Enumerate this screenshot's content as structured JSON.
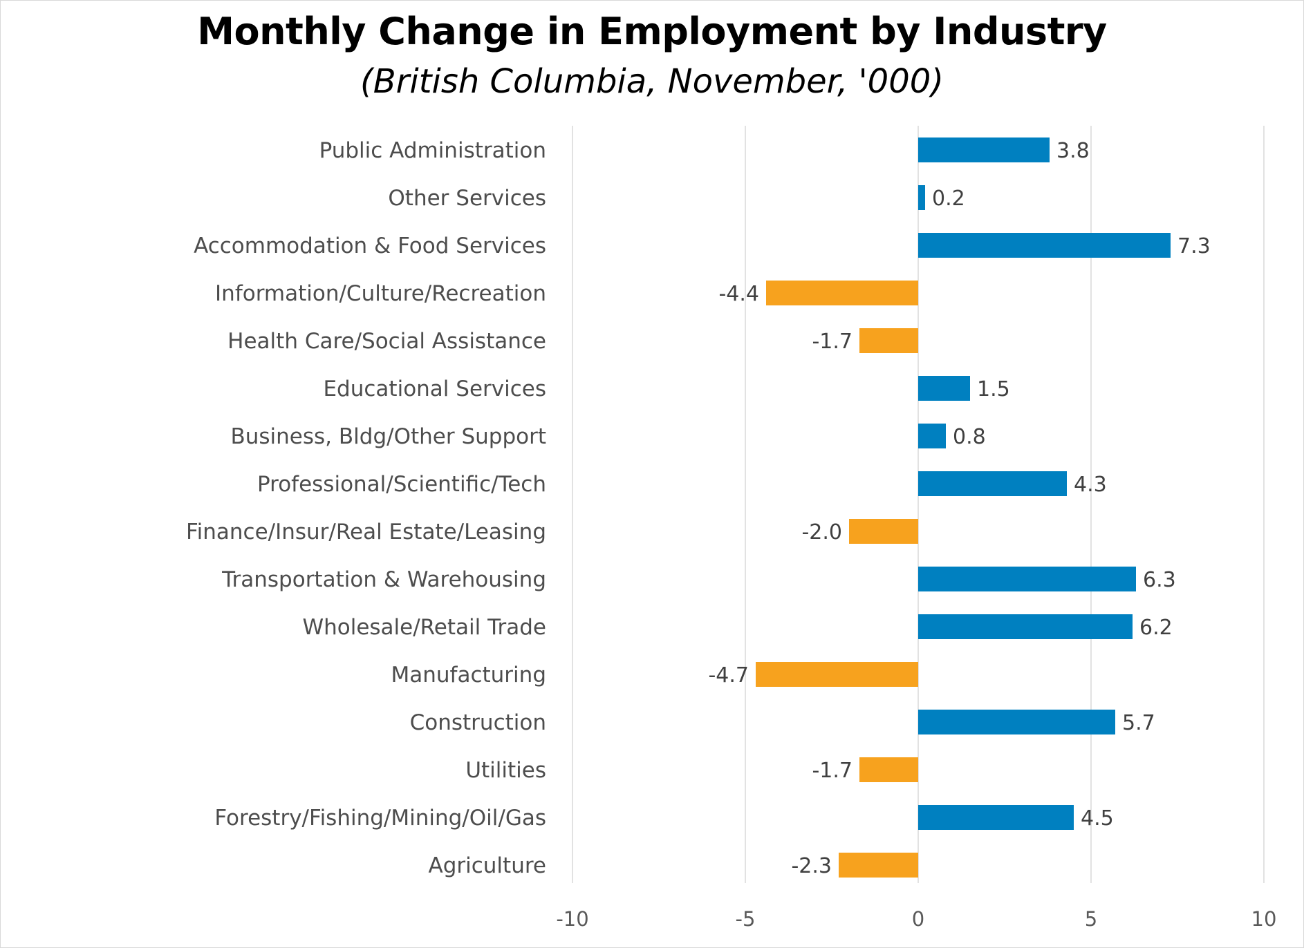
{
  "chart_data": {
    "type": "bar",
    "orientation": "horizontal",
    "title": "Monthly Change in Employment by Industry",
    "subtitle": "(British Columbia, November, '000)",
    "categories": [
      "Public Administration",
      "Other Services",
      "Accommodation & Food Services",
      "Information/Culture/Recreation",
      "Health Care/Social Assistance",
      "Educational Services",
      "Business, Bldg/Other Support",
      "Professional/Scientific/Tech",
      "Finance/Insur/Real Estate/Leasing",
      "Transportation & Warehousing",
      "Wholesale/Retail Trade",
      "Manufacturing",
      "Construction",
      "Utilities",
      "Forestry/Fishing/Mining/Oil/Gas",
      "Agriculture"
    ],
    "values": [
      3.8,
      0.2,
      7.3,
      -4.4,
      -1.7,
      1.5,
      0.8,
      4.3,
      -2.0,
      6.3,
      6.2,
      -4.7,
      5.7,
      -1.7,
      4.5,
      -2.3
    ],
    "value_labels": [
      "3.8",
      "0.2",
      "7.3",
      "-4.4",
      "-1.7",
      "1.5",
      "0.8",
      "4.3",
      "-2.0",
      "6.3",
      "6.2",
      "-4.7",
      "5.7",
      "-1.7",
      "4.5",
      "-2.3"
    ],
    "xlim": [
      -10,
      10
    ],
    "xticks": [
      -10,
      -5,
      0,
      5,
      10
    ],
    "xtick_labels": [
      "-10",
      "-5",
      "0",
      "5",
      "10"
    ],
    "xlabel": "",
    "ylabel": "",
    "grid": true,
    "legend": "none",
    "colors": {
      "positive": "#0080c0",
      "negative": "#f7a21e"
    }
  }
}
